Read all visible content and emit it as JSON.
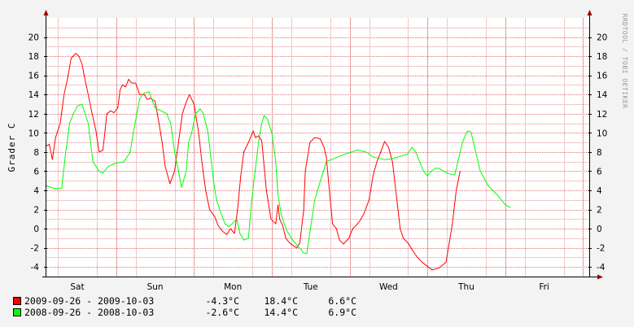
{
  "chart_data": {
    "type": "line",
    "ylabel": "Grader C",
    "watermark": "RRDTOOL / TOBI OETIKER",
    "ylim": [
      -5,
      22
    ],
    "yticks": [
      20,
      18,
      16,
      14,
      12,
      10,
      8,
      6,
      4,
      2,
      0,
      -2,
      -4
    ],
    "x_day_labels": [
      "Sat",
      "Sun",
      "Mon",
      "Tue",
      "Wed",
      "Thu",
      "Fri"
    ],
    "x_range_days": [
      0,
      7
    ],
    "grid": true,
    "colors": {
      "background": "#f3f3f3",
      "plot_bg": "#ffffff",
      "minor_grid": "#f0c8c8",
      "major_grid": "#e07070",
      "axis": "#000000",
      "series_1": "#ff0000",
      "series_2": "#00ff00"
    },
    "series": [
      {
        "name": "2009-09-26 - 2009-10-03",
        "color": "#ff0000",
        "min": "-4.3°C",
        "max": "18.4°C",
        "avg": "6.6°C",
        "x": [
          -0.41,
          -0.36,
          -0.32,
          -0.28,
          -0.22,
          -0.17,
          -0.13,
          -0.08,
          -0.02,
          0.02,
          0.06,
          0.1,
          0.14,
          0.19,
          0.24,
          0.28,
          0.33,
          0.38,
          0.43,
          0.47,
          0.52,
          0.55,
          0.58,
          0.62,
          0.66,
          0.7,
          0.75,
          0.8,
          0.86,
          0.9,
          0.94,
          1.0,
          1.05,
          1.09,
          1.13,
          1.19,
          1.25,
          1.3,
          1.35,
          1.39,
          1.44,
          1.5,
          1.56,
          1.6,
          1.65,
          1.7,
          1.77,
          1.8,
          1.83,
          1.87,
          1.92,
          1.97,
          2.02,
          2.06,
          2.1,
          2.14,
          2.2,
          2.26,
          2.29,
          2.33,
          2.37,
          2.43,
          2.49,
          2.55,
          2.58,
          2.6,
          2.64,
          2.68,
          2.73,
          2.78,
          2.82,
          2.86,
          2.91,
          2.93,
          2.99,
          3.05,
          3.12,
          3.17,
          3.2,
          3.24,
          3.28,
          3.33,
          3.37,
          3.42,
          3.49,
          3.54,
          3.58,
          3.63,
          3.68,
          3.75,
          3.8,
          3.85,
          3.9,
          3.95,
          4.0,
          4.05,
          4.1,
          4.15,
          4.19,
          4.25,
          4.29,
          4.33,
          4.37,
          4.43,
          4.51,
          4.56,
          4.65,
          4.74,
          4.82,
          4.87,
          4.92,
          4.97,
          5.04,
          5.08,
          5.13,
          5.18,
          5.26,
          5.33,
          5.4,
          5.46,
          5.52,
          5.62,
          5.71,
          5.79,
          5.82,
          5.86,
          5.89,
          5.92,
          5.95,
          5.97,
          6.0
        ],
        "y": [
          8.6,
          8.8,
          7.2,
          9.5,
          11.0,
          14.0,
          15.5,
          17.8,
          18.3,
          18.0,
          17.2,
          15.5,
          14.0,
          12.0,
          10.2,
          8.0,
          8.2,
          12.0,
          12.3,
          12.1,
          12.6,
          14.5,
          15.0,
          14.8,
          15.6,
          15.2,
          15.2,
          14.0,
          14.0,
          13.5,
          13.6,
          13.3,
          11.0,
          9.0,
          6.5,
          4.7,
          6.0,
          9.0,
          12.0,
          13.0,
          14.0,
          13.0,
          10.0,
          7.0,
          4.0,
          2.0,
          1.2,
          0.5,
          0.1,
          -0.3,
          -0.6,
          0.0,
          -0.5,
          2.0,
          5.5,
          8.0,
          9.0,
          10.2,
          9.5,
          9.7,
          9.2,
          4.0,
          1.0,
          0.5,
          2.5,
          1.0,
          0.3,
          -1.0,
          -1.5,
          -1.8,
          -2.0,
          -1.5,
          2.0,
          6.0,
          9.0,
          9.5,
          9.4,
          8.5,
          7.5,
          4.0,
          0.5,
          0.0,
          -1.2,
          -1.6,
          -1.0,
          0.0,
          0.3,
          0.8,
          1.5,
          3.0,
          5.5,
          7.0,
          8.0,
          9.1,
          8.5,
          7.0,
          3.5,
          0.0,
          -1.0,
          -1.5,
          -2.0,
          -2.5,
          -3.0,
          -3.5,
          -4.0,
          -4.3,
          -4.1,
          -3.5,
          0.5,
          4.0,
          6.0,
          null,
          null,
          null,
          null,
          null,
          null,
          null,
          null,
          null,
          null,
          null,
          null,
          null,
          null,
          null,
          null,
          null,
          null,
          null,
          null
        ]
      },
      {
        "name": "2008-09-26 - 2008-10-03",
        "color": "#00ff00",
        "min": "-2.6°C",
        "max": "14.4°C",
        "avg": "6.9°C",
        "x": [
          -0.41,
          -0.3,
          -0.2,
          -0.15,
          -0.13,
          -0.1,
          -0.05,
          0.0,
          0.06,
          0.14,
          0.2,
          0.28,
          0.33,
          0.4,
          0.48,
          0.6,
          0.68,
          0.72,
          0.8,
          0.85,
          0.92,
          1.0,
          1.15,
          1.2,
          1.25,
          1.3,
          1.34,
          1.4,
          1.43,
          1.47,
          1.52,
          1.58,
          1.62,
          1.68,
          1.75,
          1.79,
          1.85,
          1.9,
          1.95,
          2.05,
          2.09,
          2.14,
          2.2,
          2.23,
          2.27,
          2.33,
          2.37,
          2.4,
          2.44,
          2.5,
          2.55,
          2.58,
          2.62,
          2.66,
          2.7,
          2.75,
          2.8,
          2.85,
          2.88,
          2.9,
          2.95,
          3.05,
          3.2,
          3.45,
          3.6,
          3.71,
          3.8,
          3.95,
          4.05,
          4.25,
          4.3,
          4.35,
          4.4,
          4.45,
          4.5,
          4.55,
          4.6,
          4.65,
          4.75,
          4.85,
          4.95,
          5.0,
          5.02,
          5.06,
          5.12,
          5.18,
          5.28,
          5.4,
          5.5,
          5.57
        ],
        "y": [
          4.5,
          4.2,
          4.2,
          8.0,
          9.0,
          11.0,
          12.0,
          12.8,
          13.0,
          11.0,
          7.0,
          6.0,
          5.8,
          6.5,
          6.8,
          7.0,
          8.0,
          10.0,
          13.5,
          14.1,
          14.3,
          12.6,
          12.0,
          11.0,
          8.0,
          6.0,
          4.3,
          6.0,
          9.0,
          10.0,
          12.0,
          12.5,
          12.0,
          10.0,
          5.0,
          3.0,
          1.5,
          0.5,
          0.2,
          1.0,
          -0.5,
          -1.2,
          -1.0,
          2.0,
          5.0,
          9.0,
          11.0,
          11.8,
          11.5,
          10.0,
          7.0,
          3.5,
          1.5,
          0.5,
          -0.3,
          -1.0,
          -1.5,
          -2.0,
          -2.2,
          -2.5,
          -2.6,
          3.0,
          7.0,
          7.8,
          8.2,
          8.0,
          7.5,
          7.2,
          7.3,
          7.8,
          8.5,
          8.0,
          7.0,
          6.0,
          5.5,
          6.0,
          6.3,
          6.3,
          5.8,
          5.6,
          9.0,
          10.0,
          10.2,
          10.1,
          8.0,
          6.0,
          4.5,
          3.5,
          2.5,
          2.2
        ]
      }
    ]
  }
}
